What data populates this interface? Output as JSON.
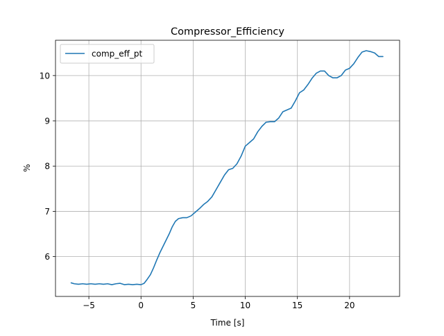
{
  "chart_data": {
    "type": "line",
    "title": "Compressor_Efficiency",
    "xlabel": "Time [s]",
    "ylabel": "%",
    "xlim": [
      -8.2,
      24.8
    ],
    "ylim": [
      5.12,
      10.78
    ],
    "xticks": [
      -5,
      0,
      5,
      10,
      15,
      20
    ],
    "xtick_labels": [
      "−5",
      "0",
      "5",
      "10",
      "15",
      "20"
    ],
    "yticks": [
      6,
      7,
      8,
      9,
      10
    ],
    "ytick_labels": [
      "6",
      "7",
      "8",
      "9",
      "10"
    ],
    "grid": true,
    "legend": {
      "location": "upper-left",
      "entries": [
        "comp_eff_pt"
      ]
    },
    "series": [
      {
        "name": "comp_eff_pt",
        "color": "#1f77b4",
        "points": [
          [
            -6.7,
            5.42
          ],
          [
            -6.4,
            5.4
          ],
          [
            -6.0,
            5.39
          ],
          [
            -5.6,
            5.4
          ],
          [
            -5.2,
            5.39
          ],
          [
            -4.8,
            5.4
          ],
          [
            -4.4,
            5.39
          ],
          [
            -4.0,
            5.4
          ],
          [
            -3.6,
            5.39
          ],
          [
            -3.2,
            5.4
          ],
          [
            -2.8,
            5.38
          ],
          [
            -2.4,
            5.4
          ],
          [
            -2.0,
            5.41
          ],
          [
            -1.6,
            5.38
          ],
          [
            -1.2,
            5.39
          ],
          [
            -0.8,
            5.38
          ],
          [
            -0.4,
            5.39
          ],
          [
            0.0,
            5.38
          ],
          [
            0.3,
            5.41
          ],
          [
            0.6,
            5.5
          ],
          [
            0.9,
            5.6
          ],
          [
            1.2,
            5.75
          ],
          [
            1.5,
            5.92
          ],
          [
            1.8,
            6.08
          ],
          [
            2.1,
            6.22
          ],
          [
            2.4,
            6.36
          ],
          [
            2.7,
            6.5
          ],
          [
            3.0,
            6.66
          ],
          [
            3.3,
            6.78
          ],
          [
            3.6,
            6.84
          ],
          [
            4.0,
            6.86
          ],
          [
            4.4,
            6.86
          ],
          [
            4.8,
            6.9
          ],
          [
            5.2,
            6.98
          ],
          [
            5.6,
            7.06
          ],
          [
            6.0,
            7.15
          ],
          [
            6.4,
            7.22
          ],
          [
            6.8,
            7.32
          ],
          [
            7.2,
            7.48
          ],
          [
            7.6,
            7.64
          ],
          [
            8.0,
            7.8
          ],
          [
            8.4,
            7.92
          ],
          [
            8.8,
            7.95
          ],
          [
            9.2,
            8.05
          ],
          [
            9.6,
            8.22
          ],
          [
            10.0,
            8.44
          ],
          [
            10.4,
            8.52
          ],
          [
            10.8,
            8.6
          ],
          [
            11.2,
            8.76
          ],
          [
            11.6,
            8.88
          ],
          [
            12.0,
            8.97
          ],
          [
            12.4,
            8.98
          ],
          [
            12.8,
            8.98
          ],
          [
            13.2,
            9.06
          ],
          [
            13.6,
            9.2
          ],
          [
            14.0,
            9.24
          ],
          [
            14.4,
            9.28
          ],
          [
            14.8,
            9.44
          ],
          [
            15.2,
            9.62
          ],
          [
            15.6,
            9.68
          ],
          [
            16.0,
            9.8
          ],
          [
            16.4,
            9.94
          ],
          [
            16.8,
            10.05
          ],
          [
            17.2,
            10.1
          ],
          [
            17.6,
            10.1
          ],
          [
            18.0,
            10.0
          ],
          [
            18.4,
            9.95
          ],
          [
            18.8,
            9.95
          ],
          [
            19.2,
            10.0
          ],
          [
            19.6,
            10.12
          ],
          [
            20.0,
            10.16
          ],
          [
            20.4,
            10.26
          ],
          [
            20.8,
            10.4
          ],
          [
            21.2,
            10.52
          ],
          [
            21.6,
            10.55
          ],
          [
            22.0,
            10.53
          ],
          [
            22.4,
            10.5
          ],
          [
            22.8,
            10.42
          ],
          [
            23.2,
            10.42
          ]
        ]
      }
    ]
  }
}
